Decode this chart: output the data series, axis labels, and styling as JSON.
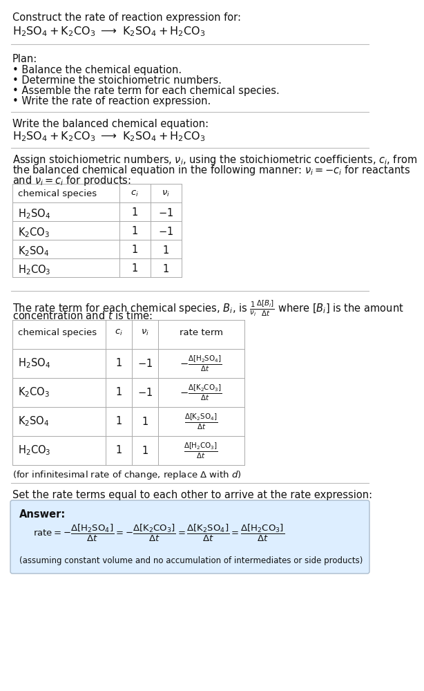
{
  "bg_color": "#ffffff",
  "text_color": "#111111",
  "title_line1": "Construct the rate of reaction expression for:",
  "plan_header": "Plan:",
  "plan_items": [
    "• Balance the chemical equation.",
    "• Determine the stoichiometric numbers.",
    "• Assemble the rate term for each chemical species.",
    "• Write the rate of reaction expression."
  ],
  "balanced_header": "Write the balanced chemical equation:",
  "stoich_intro1": "Assign stoichiometric numbers, $\\nu_i$, using the stoichiometric coefficients, $c_i$, from",
  "stoich_intro2": "the balanced chemical equation in the following manner: $\\nu_i = -c_i$ for reactants",
  "stoich_intro3": "and $\\nu_i = c_i$ for products:",
  "table1_headers": [
    "chemical species",
    "$c_i$",
    "$\\nu_i$"
  ],
  "table1_rows": [
    [
      "$\\mathrm{H_2SO_4}$",
      "1",
      "$-1$"
    ],
    [
      "$\\mathrm{K_2CO_3}$",
      "1",
      "$-1$"
    ],
    [
      "$\\mathrm{K_2SO_4}$",
      "1",
      "$1$"
    ],
    [
      "$\\mathrm{H_2CO_3}$",
      "1",
      "$1$"
    ]
  ],
  "rate_intro1": "The rate term for each chemical species, $B_i$, is $\\frac{1}{\\nu_i}\\frac{\\Delta[B_i]}{\\Delta t}$ where $[B_i]$ is the amount",
  "rate_intro2": "concentration and $t$ is time:",
  "table2_headers": [
    "chemical species",
    "$c_i$",
    "$\\nu_i$",
    "rate term"
  ],
  "table2_rows": [
    [
      "$\\mathrm{H_2SO_4}$",
      "1",
      "$-1$",
      "$-\\frac{\\Delta[\\mathrm{H_2SO_4}]}{\\Delta t}$"
    ],
    [
      "$\\mathrm{K_2CO_3}$",
      "1",
      "$-1$",
      "$-\\frac{\\Delta[\\mathrm{K_2CO_3}]}{\\Delta t}$"
    ],
    [
      "$\\mathrm{K_2SO_4}$",
      "1",
      "$1$",
      "$\\frac{\\Delta[\\mathrm{K_2SO_4}]}{\\Delta t}$"
    ],
    [
      "$\\mathrm{H_2CO_3}$",
      "1",
      "$1$",
      "$\\frac{\\Delta[\\mathrm{H_2CO_3}]}{\\Delta t}$"
    ]
  ],
  "infinitesimal_note": "(for infinitesimal rate of change, replace Δ with $d$)",
  "set_equal_text": "Set the rate terms equal to each other to arrive at the rate expression:",
  "answer_box_color": "#ddeeff",
  "answer_box_border": "#aabbcc",
  "answer_label": "Answer:",
  "answer_note": "(assuming constant volume and no accumulation of intermediates or side products)",
  "sep_color": "#bbbbbb",
  "table_line_color": "#aaaaaa",
  "main_fontsize": 10.5,
  "sub_fontsize": 9.5
}
